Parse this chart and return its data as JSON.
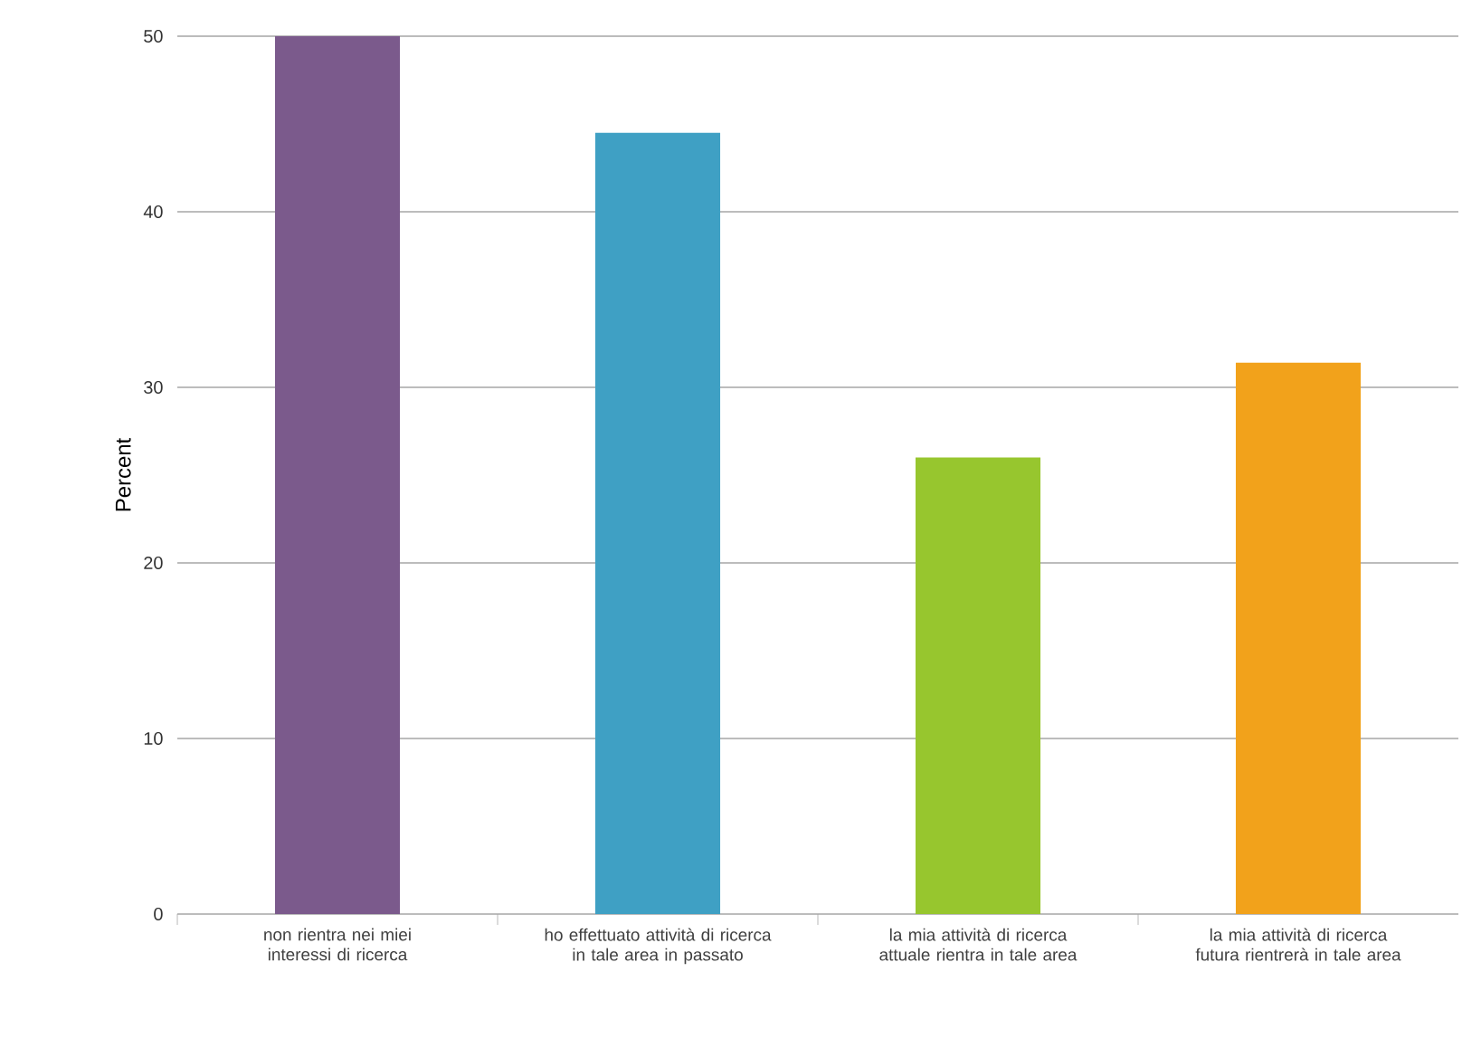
{
  "chart_data": {
    "type": "bar",
    "categories": [
      "non rientra nei miei interessi di ricerca",
      "ho effettuato attività di ricerca in tale area in passato",
      "la mia attività di ricerca attuale rientra in tale area",
      "la mia attività di ricerca futura rientrerà in tale area"
    ],
    "values": [
      50,
      44.5,
      26,
      31.4
    ],
    "colors": [
      "#7b5a8c",
      "#3fa0c4",
      "#97c62e",
      "#f2a21b"
    ],
    "ylabel": "Percent",
    "ylim": [
      0,
      50
    ],
    "yticks": [
      0,
      10,
      20,
      30,
      40,
      50
    ],
    "grid": "y"
  }
}
